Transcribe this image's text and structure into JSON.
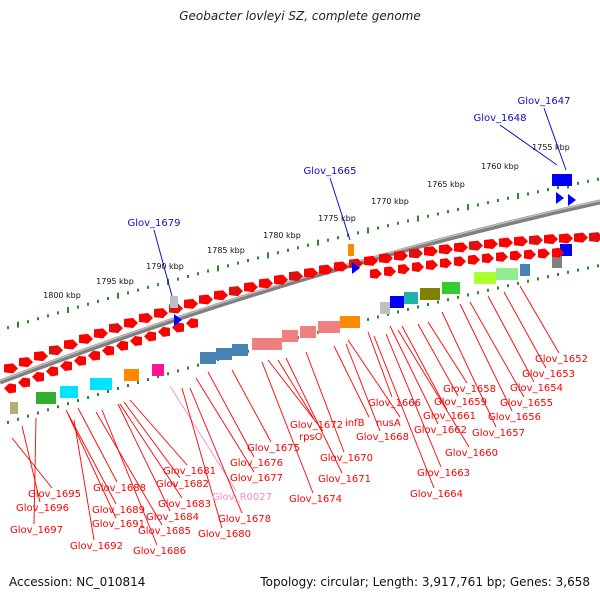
{
  "title": "Geobacter lovleyi SZ, complete genome",
  "footer": {
    "accession": "Accession: NC_010814",
    "summary": "Topology: circular; Length: 3,917,761 bp; Genes: 3,658"
  },
  "colors": {
    "gene": "#ff0000",
    "label_line": "#ff0000",
    "top_label": "#1010c0",
    "rna_label": "#ff88cc",
    "ruler": "#2a8a2a",
    "backbone": "#808080"
  },
  "ruler_labels": [
    "1800 kbp",
    "1795 kbp",
    "1790 kbp",
    "1785 kbp",
    "1780 kbp",
    "1775 kbp",
    "1770 kbp",
    "1765 kbp",
    "1760 kbp",
    "1755 kbp"
  ],
  "top_labels": [
    "Glov_1679",
    "Glov_1665",
    "Glov_1648",
    "Glov_1647"
  ],
  "gene_labels": [
    "Glov_1695",
    "Glov_1696",
    "Glov_1697",
    "Glov_1688",
    "Glov_1689",
    "Glov_1691",
    "Glov_1692",
    "Glov_1681",
    "Glov_1682",
    "Glov_1683",
    "Glov_1684",
    "Glov_1685",
    "Glov_1686",
    "Glov_R0027",
    "Glov_1678",
    "Glov_1680",
    "Glov_1675",
    "Glov_1676",
    "Glov_1677",
    "Glov_1672",
    "rpsO",
    "Glov_1674",
    "Glov_1670",
    "Glov_1671",
    "infB",
    "nusA",
    "Glov_1666",
    "Glov_1668",
    "Glov_1658",
    "Glov_1659",
    "Glov_1661",
    "Glov_1662",
    "Glov_1663",
    "Glov_1664",
    "Glov_1660",
    "Glov_1655",
    "Glov_1656",
    "Glov_1657",
    "Glov_1652",
    "Glov_1653",
    "Glov_1654"
  ]
}
